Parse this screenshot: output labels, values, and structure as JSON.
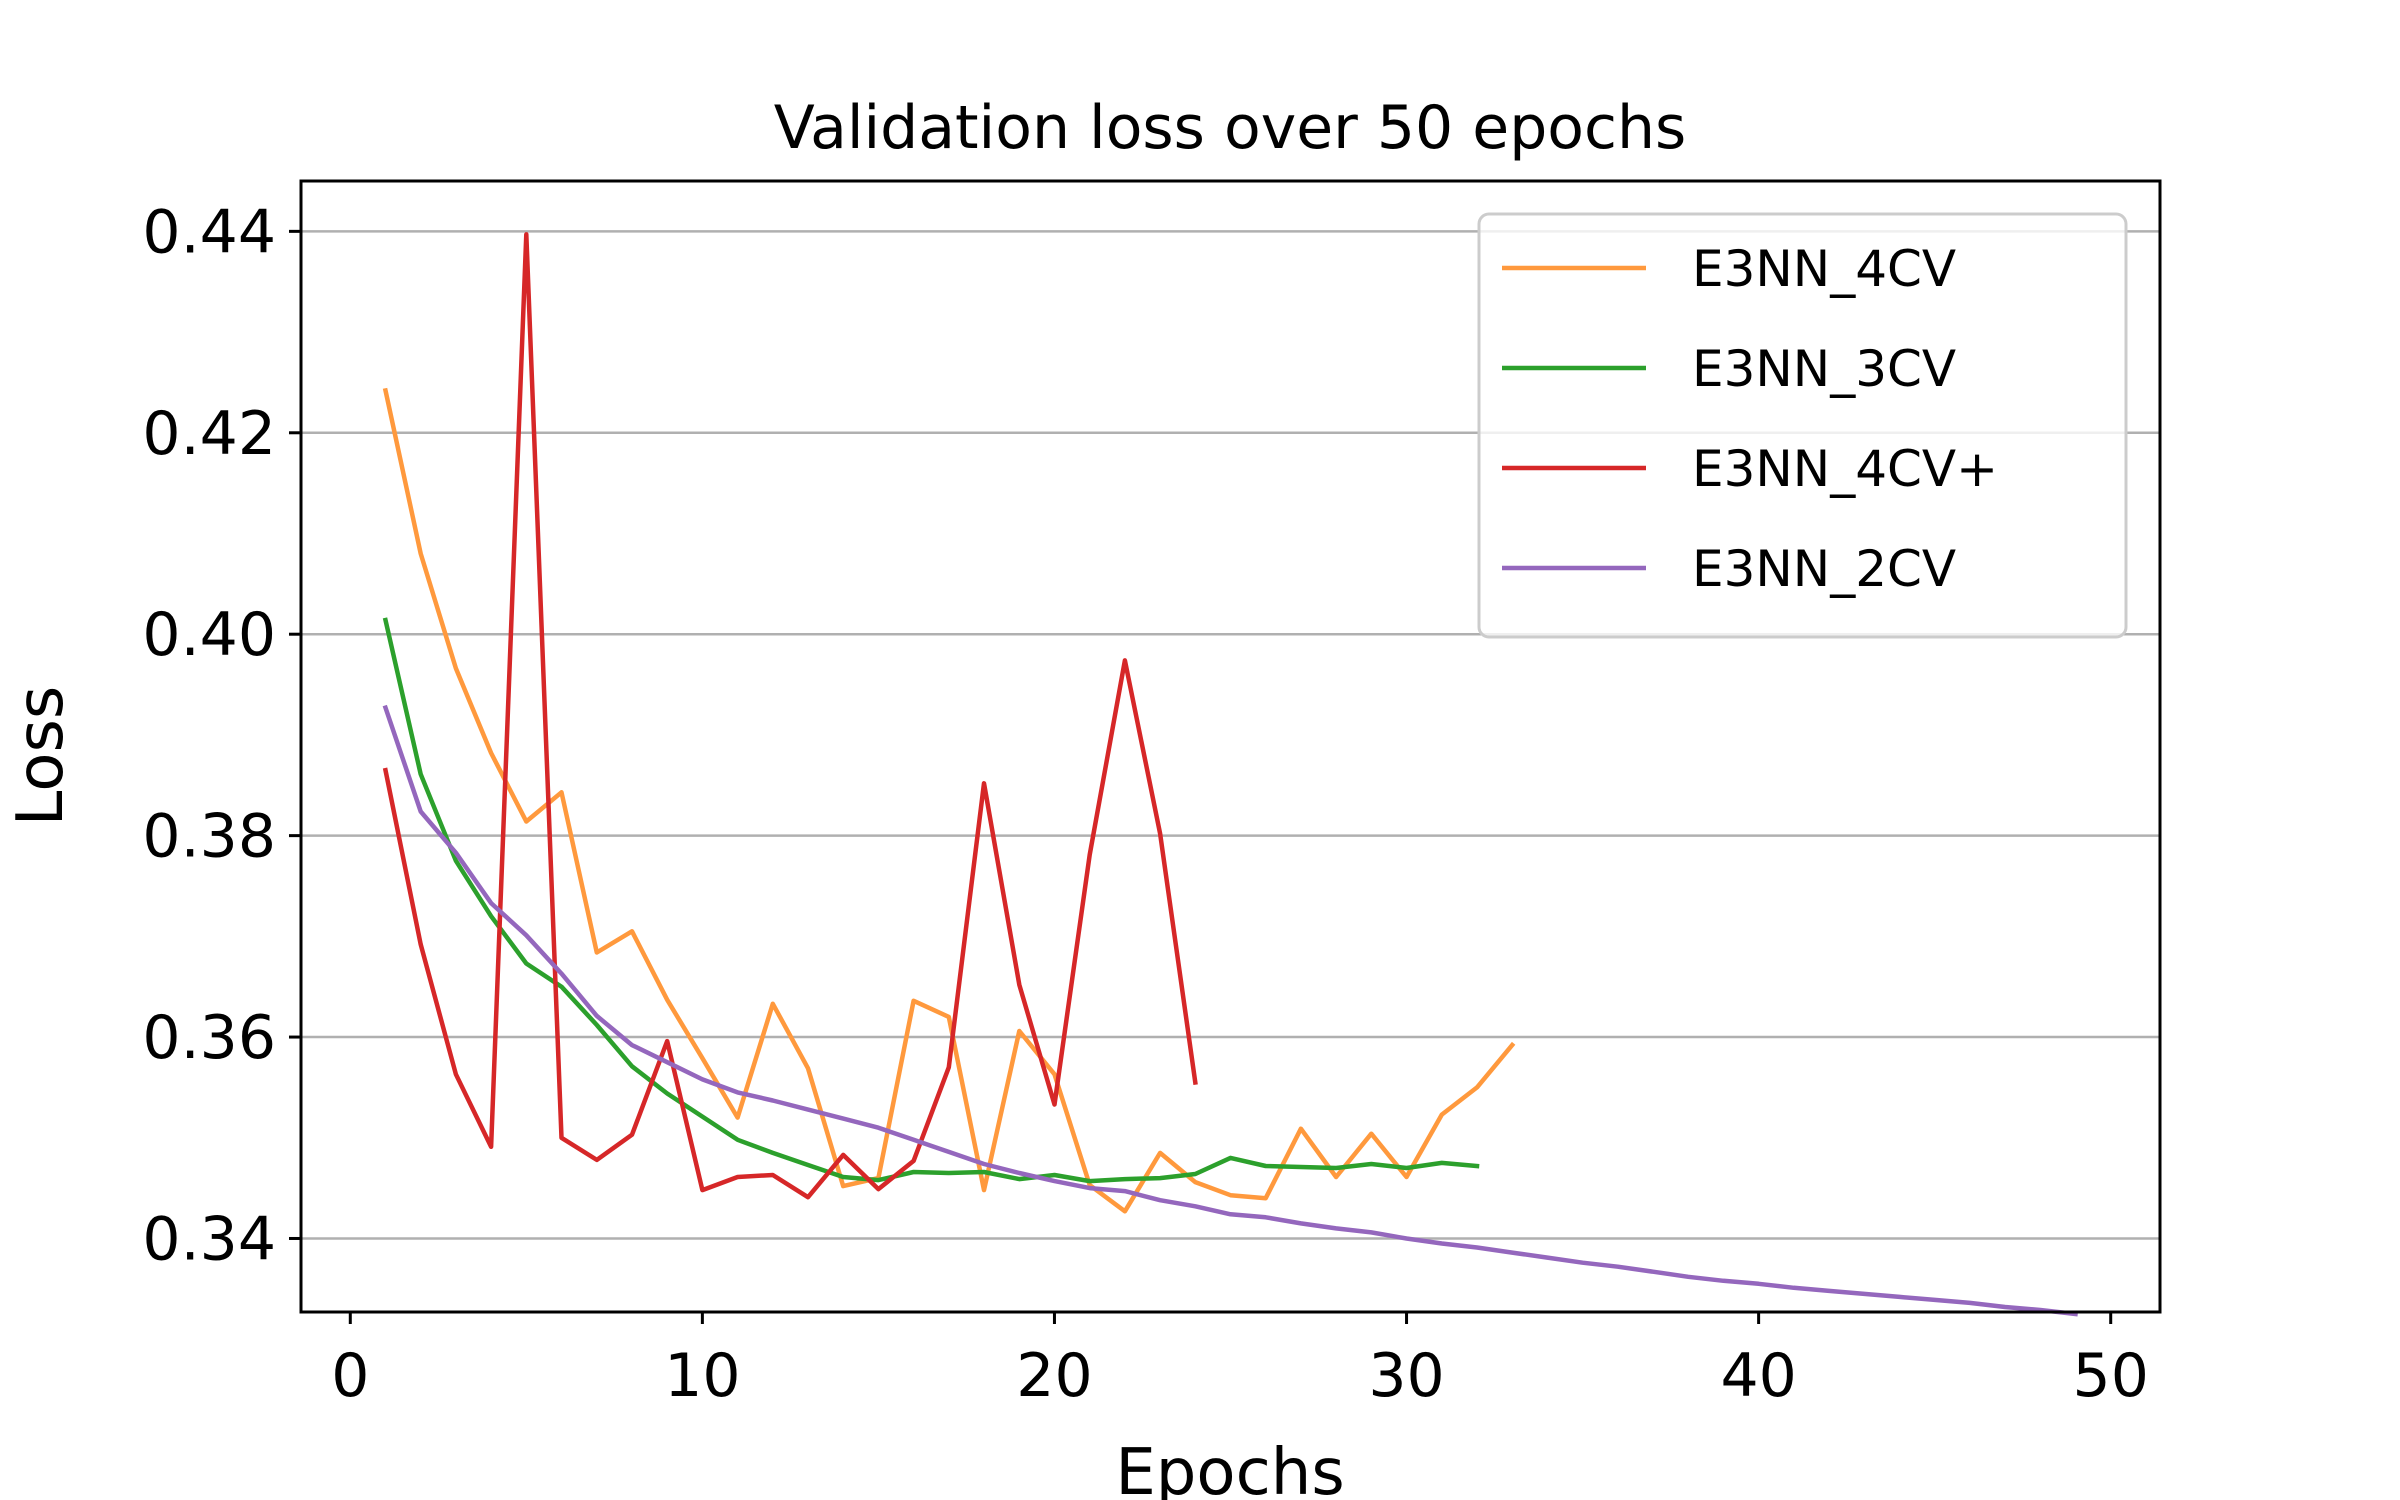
{
  "chart_data": {
    "type": "line",
    "title": "Validation loss over 50 epochs",
    "xlabel": "Epochs",
    "ylabel": "Loss",
    "xlim": [
      -1.4,
      51.4
    ],
    "ylim": [
      0.3327,
      0.445
    ],
    "xticks": [
      0,
      10,
      20,
      30,
      40,
      50
    ],
    "yticks": [
      0.34,
      0.36,
      0.38,
      0.4,
      0.42,
      0.44
    ],
    "xtick_labels": [
      "0",
      "10",
      "20",
      "30",
      "40",
      "50"
    ],
    "ytick_labels": [
      "0.34",
      "0.36",
      "0.38",
      "0.40",
      "0.42",
      "0.44"
    ],
    "grid": "horizontal",
    "legend_position": "top-right",
    "series": [
      {
        "name": "E3NN_4CV",
        "color": "#ff993d",
        "x": [
          1,
          2,
          3,
          4,
          5,
          6,
          7,
          8,
          9,
          10,
          11,
          12,
          13,
          14,
          15,
          16,
          17,
          18,
          19,
          20,
          21,
          22,
          23,
          24,
          25,
          26,
          27,
          28,
          29,
          30,
          31,
          32,
          33
        ],
        "values": [
          0.4242,
          0.408,
          0.3966,
          0.3882,
          0.3814,
          0.3843,
          0.3684,
          0.3705,
          0.3637,
          0.3579,
          0.352,
          0.3633,
          0.3569,
          0.3452,
          0.346,
          0.3636,
          0.362,
          0.3448,
          0.3606,
          0.3563,
          0.3453,
          0.3427,
          0.3485,
          0.3456,
          0.3443,
          0.344,
          0.3509,
          0.3461,
          0.3504,
          0.3461,
          0.3523,
          0.355,
          0.3592
        ]
      },
      {
        "name": "E3NN_3CV",
        "color": "#2ca02c",
        "x": [
          1,
          2,
          3,
          4,
          5,
          6,
          7,
          8,
          9,
          10,
          11,
          12,
          13,
          14,
          15,
          16,
          17,
          18,
          19,
          20,
          21,
          22,
          23,
          24,
          25,
          26,
          27,
          28,
          29,
          30,
          31,
          32
        ],
        "values": [
          0.4014,
          0.3861,
          0.3775,
          0.372,
          0.3673,
          0.365,
          0.3612,
          0.3571,
          0.3544,
          0.3521,
          0.3498,
          0.3485,
          0.3473,
          0.3461,
          0.3458,
          0.3466,
          0.3465,
          0.3466,
          0.3459,
          0.3463,
          0.3457,
          0.3459,
          0.346,
          0.3464,
          0.348,
          0.3472,
          0.3471,
          0.347,
          0.3474,
          0.347,
          0.3475,
          0.3472
        ]
      },
      {
        "name": "E3NN_4CV+",
        "color": "#d62728",
        "x": [
          1,
          2,
          3,
          4,
          5,
          6,
          7,
          8,
          9,
          10,
          11,
          12,
          13,
          14,
          15,
          16,
          17,
          18,
          19,
          20,
          21,
          22,
          23,
          24
        ],
        "values": [
          0.3865,
          0.3692,
          0.3563,
          0.3491,
          0.4397,
          0.35,
          0.3478,
          0.3503,
          0.3596,
          0.3448,
          0.3461,
          0.3463,
          0.3441,
          0.3483,
          0.3449,
          0.3477,
          0.357,
          0.3852,
          0.3652,
          0.3533,
          0.3781,
          0.3974,
          0.3802,
          0.3555
        ]
      },
      {
        "name": "E3NN_2CV",
        "color": "#9467bd",
        "x": [
          1,
          2,
          3,
          4,
          5,
          6,
          7,
          8,
          9,
          10,
          11,
          12,
          13,
          14,
          15,
          16,
          17,
          18,
          19,
          20,
          21,
          22,
          23,
          24,
          25,
          26,
          27,
          28,
          29,
          30,
          31,
          32,
          33,
          34,
          35,
          36,
          37,
          38,
          39,
          40,
          41,
          42,
          43,
          44,
          45,
          46,
          47,
          48,
          49
        ],
        "values": [
          0.3927,
          0.3824,
          0.3783,
          0.3733,
          0.3701,
          0.3663,
          0.3621,
          0.3592,
          0.3575,
          0.3558,
          0.3545,
          0.3537,
          0.3528,
          0.3519,
          0.351,
          0.3498,
          0.3486,
          0.3474,
          0.3465,
          0.3457,
          0.345,
          0.3447,
          0.3438,
          0.3432,
          0.3424,
          0.3421,
          0.3415,
          0.341,
          0.3406,
          0.34,
          0.3395,
          0.3391,
          0.3386,
          0.3381,
          0.3376,
          0.3372,
          0.3367,
          0.3362,
          0.3358,
          0.3355,
          0.3351,
          0.3348,
          0.3345,
          0.3342,
          0.3339,
          0.3336,
          0.3332,
          0.3329,
          0.3325
        ]
      }
    ]
  }
}
